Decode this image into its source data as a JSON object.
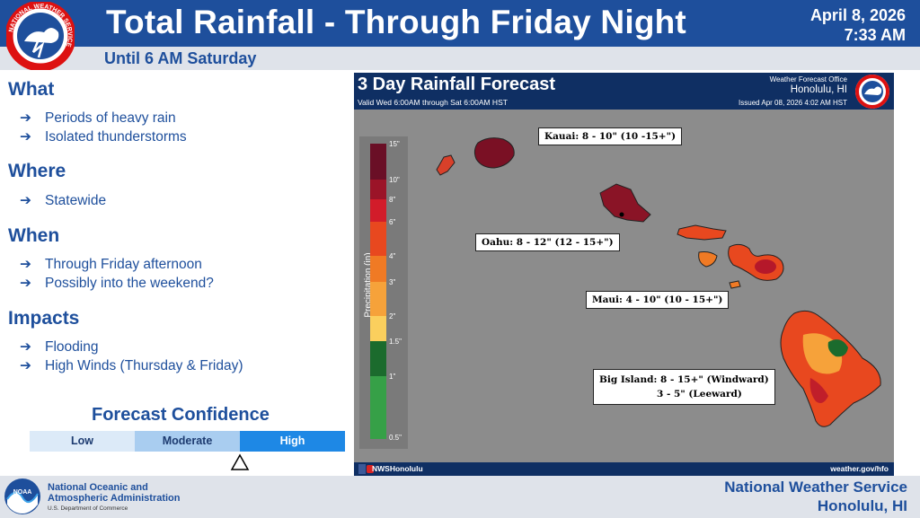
{
  "header": {
    "title": "Total Rainfall - Through Friday Night",
    "date": "April 8, 2026",
    "time": "7:33 AM",
    "subtitle": "Until 6 AM Saturday",
    "logo_text": "NATIONAL WEATHER SERVICE"
  },
  "sections": {
    "what": {
      "heading": "What",
      "items": [
        "Periods of heavy rain",
        "Isolated thunderstorms"
      ]
    },
    "where": {
      "heading": "Where",
      "items": [
        "Statewide"
      ]
    },
    "when": {
      "heading": "When",
      "items": [
        "Through Friday afternoon",
        "Possibly into the weekend?"
      ]
    },
    "impacts": {
      "heading": "Impacts",
      "items": [
        "Flooding",
        "High Winds (Thursday & Friday)"
      ]
    }
  },
  "arrow_glyph": "➔",
  "confidence": {
    "title": "Forecast Confidence",
    "levels": [
      "Low",
      "Moderate",
      "High"
    ],
    "selected": "High"
  },
  "map": {
    "title": "3 Day Rainfall Forecast",
    "valid": "Valid Wed 6:00AM through Sat 6:00AM HST",
    "office_line1": "Weather Forecast Office",
    "office_line2": "Honolulu, HI",
    "issued": "Issued Apr 08, 2026 4:02 AM HST",
    "social": "NWSHonolulu",
    "url": "weather.gov/hfo",
    "legend_title": "Precipitation (in)",
    "legend_labels": [
      "15\"",
      "10\"",
      "8\"",
      "6\"",
      "4\"",
      "3\"",
      "2\"",
      "1.5\"",
      "1\"",
      "0.5\""
    ],
    "legend_colors": [
      "#6a0f26",
      "#9b1428",
      "#d21c2a",
      "#e8481f",
      "#f07a24",
      "#f6a23a",
      "#fbcf5d",
      "#f8f08a",
      "#1b6b2d",
      "#36a047"
    ],
    "labels": {
      "kauai": "Kauai: 8 - 10\" (10 -15+\")",
      "oahu": "Oahu: 8 - 12\" (12 - 15+\")",
      "maui": "Maui: 4 - 10\" (10 - 15+\")",
      "big_island_1": "Big Island: 8 - 15+\" (Windward)",
      "big_island_2": "3 - 5\" (Leeward)"
    }
  },
  "footer": {
    "noaa_line1": "National Oceanic and",
    "noaa_line2": "Atmospheric Administration",
    "noaa_line3": "U.S. Department of Commerce",
    "noaa_logo_text": "NOAA",
    "nws_line1": "National Weather Service",
    "nws_line2": "Honolulu, HI"
  }
}
